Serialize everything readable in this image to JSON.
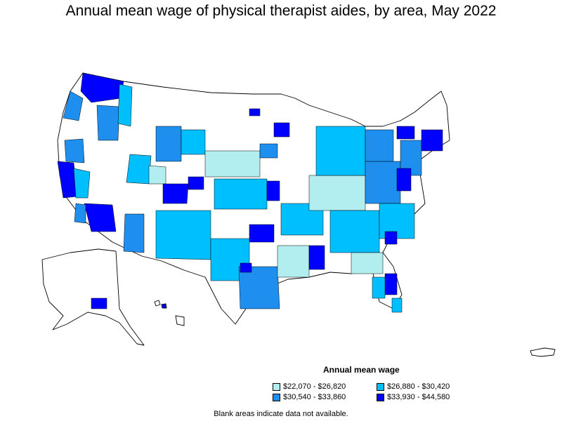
{
  "title": "Annual mean wage of physical therapist aides, by area, May 2022",
  "legend": {
    "title": "Annual mean wage",
    "items": [
      {
        "label": "$22,070 - $26,820",
        "color": "#b2eef0"
      },
      {
        "label": "$26,880 - $30,420",
        "color": "#00bfff"
      },
      {
        "label": "$30,540 - $33,860",
        "color": "#1e8fef"
      },
      {
        "label": "$33,930 - $44,580",
        "color": "#0000ff"
      }
    ]
  },
  "footnote": "Blank areas indicate data not available.",
  "colors": {
    "no_data": "#ffffff",
    "border": "#000000"
  }
}
